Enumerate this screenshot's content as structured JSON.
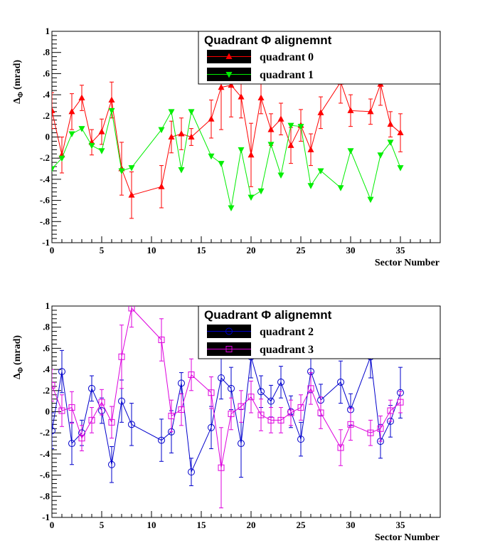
{
  "chart_data": [
    {
      "type": "line",
      "ylabel_main": "Δ",
      "ylabel_sub": "Φ",
      "ylabel_unit": "(mrad)",
      "xlabel": "Sector Number",
      "xlim": [
        0,
        39
      ],
      "ylim": [
        -1,
        1
      ],
      "x_ticks": [
        0,
        5,
        10,
        15,
        20,
        25,
        30,
        35
      ],
      "y_ticks": [
        -1,
        -0.8,
        -0.6,
        -0.4,
        -0.2,
        0,
        0.2,
        0.4,
        0.6,
        0.8,
        1
      ],
      "legend_title": "Quadrant Φ alignemnt",
      "legend_position": "top-right",
      "grid": false,
      "series": [
        {
          "name": "quadrant 0",
          "color": "#ff0000",
          "marker": "triangle-up",
          "x": [
            0,
            1,
            2,
            3,
            4,
            5,
            6,
            7,
            8,
            11,
            12,
            13,
            14,
            16,
            17,
            18,
            19,
            20,
            21,
            22,
            23,
            24,
            25,
            26,
            27,
            29,
            30,
            32,
            33,
            34,
            35
          ],
          "y": [
            0.25,
            -0.17,
            0.24,
            0.37,
            -0.05,
            0.05,
            0.35,
            -0.3,
            -0.55,
            -0.47,
            0.0,
            0.03,
            0.0,
            0.17,
            0.47,
            0.49,
            0.38,
            -0.17,
            0.37,
            0.07,
            0.17,
            -0.08,
            0.11,
            -0.12,
            0.23,
            0.52,
            0.25,
            0.24,
            0.5,
            0.12,
            0.04
          ],
          "err": [
            0.17,
            0.17,
            0.17,
            0.12,
            0.12,
            0.12,
            0.17,
            0.25,
            0.22,
            0.2,
            0.15,
            0.15,
            0.08,
            0.18,
            0.4,
            0.3,
            0.2,
            0.3,
            0.15,
            0.15,
            0.15,
            0.17,
            0.15,
            0.15,
            0.15,
            0.2,
            0.15,
            0.12,
            0.2,
            0.12,
            0.18
          ]
        },
        {
          "name": "quadrant 1",
          "color": "#00ee00",
          "marker": "triangle-down",
          "x": [
            0,
            1,
            2,
            3,
            4,
            5,
            6,
            7,
            8,
            11,
            12,
            13,
            14,
            16,
            17,
            18,
            19,
            20,
            21,
            22,
            23,
            24,
            25,
            26,
            27,
            29,
            30,
            32,
            33,
            34,
            35
          ],
          "y": [
            -0.3,
            -0.2,
            0.03,
            0.08,
            -0.08,
            -0.13,
            0.25,
            -0.32,
            -0.29,
            0.07,
            0.24,
            -0.31,
            0.24,
            -0.18,
            -0.25,
            -0.67,
            -0.12,
            -0.57,
            -0.51,
            -0.07,
            -0.36,
            0.11,
            0.1,
            -0.46,
            -0.32,
            -0.48,
            -0.13,
            -0.59,
            -0.17,
            -0.05,
            -0.29
          ]
        }
      ]
    },
    {
      "type": "line",
      "ylabel_main": "Δ",
      "ylabel_sub": "Φ",
      "ylabel_unit": "(mrad)",
      "xlabel": "Sector Number",
      "xlim": [
        0,
        39
      ],
      "ylim": [
        -1,
        1
      ],
      "x_ticks": [
        0,
        5,
        10,
        15,
        20,
        25,
        30,
        35
      ],
      "y_ticks": [
        -1,
        -0.8,
        -0.6,
        -0.4,
        -0.2,
        0,
        0.2,
        0.4,
        0.6,
        0.8,
        1
      ],
      "legend_title": "Quadrant Φ alignemnt",
      "legend_position": "top-right",
      "grid": false,
      "series": [
        {
          "name": "quadrant 2",
          "color": "#0000cc",
          "marker": "circle-open",
          "x": [
            0,
            1,
            2,
            3,
            4,
            5,
            6,
            7,
            8,
            11,
            12,
            13,
            14,
            16,
            17,
            18,
            19,
            20,
            21,
            22,
            23,
            24,
            25,
            26,
            27,
            29,
            30,
            32,
            33,
            34,
            35
          ],
          "y": [
            -0.18,
            0.38,
            -0.3,
            -0.2,
            0.22,
            0.01,
            -0.5,
            0.1,
            -0.12,
            -0.27,
            -0.19,
            0.27,
            -0.57,
            -0.15,
            0.32,
            0.22,
            -0.3,
            0.52,
            0.19,
            0.1,
            0.28,
            0.0,
            -0.26,
            0.38,
            0.11,
            0.28,
            0.02,
            0.52,
            -0.28,
            -0.09,
            0.18
          ],
          "err": [
            0.17,
            0.2,
            0.2,
            0.12,
            0.12,
            0.12,
            0.17,
            0.2,
            0.2,
            0.2,
            0.2,
            0.1,
            0.13,
            0.2,
            0.2,
            0.2,
            0.32,
            0.2,
            0.15,
            0.15,
            0.15,
            0.15,
            0.16,
            0.2,
            0.15,
            0.2,
            0.15,
            0.2,
            0.16,
            0.15,
            0.24
          ]
        },
        {
          "name": "quadrant 3",
          "color": "#dd00dd",
          "marker": "square-open",
          "x": [
            0,
            1,
            2,
            3,
            4,
            5,
            6,
            7,
            8,
            11,
            12,
            13,
            14,
            16,
            17,
            18,
            19,
            20,
            21,
            22,
            23,
            24,
            25,
            26,
            27,
            29,
            30,
            32,
            33,
            34,
            35
          ],
          "y": [
            0.25,
            0.01,
            0.04,
            -0.25,
            -0.08,
            0.09,
            -0.1,
            0.52,
            0.98,
            0.68,
            -0.04,
            0.02,
            0.35,
            0.18,
            -0.53,
            -0.02,
            0.05,
            0.14,
            -0.03,
            -0.08,
            -0.08,
            -0.01,
            0.04,
            0.22,
            -0.01,
            -0.34,
            -0.12,
            -0.2,
            -0.16,
            0.01,
            0.09
          ],
          "err": [
            0.15,
            0.15,
            0.15,
            0.12,
            0.12,
            0.12,
            0.15,
            0.3,
            0.18,
            0.2,
            0.15,
            0.15,
            0.15,
            0.15,
            0.38,
            0.15,
            0.15,
            0.15,
            0.15,
            0.12,
            0.12,
            0.12,
            0.12,
            0.15,
            0.15,
            0.17,
            0.15,
            0.12,
            0.12,
            0.1,
            0.1
          ]
        }
      ]
    }
  ]
}
